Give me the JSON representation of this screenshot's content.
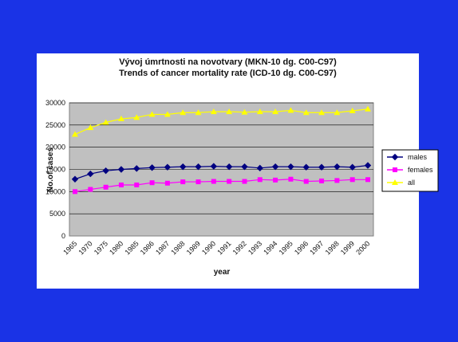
{
  "chart_data": {
    "type": "line",
    "title": "Vývoj úmrtnosti na novotvary (MKN-10 dg. C00-C97)",
    "subtitle": "Trends of cancer mortality rate (ICD-10 dg. C00-C97)",
    "xlabel": "year",
    "ylabel": "No.of cases",
    "ylim": [
      0,
      30000
    ],
    "yticks": [
      0,
      5000,
      10000,
      15000,
      20000,
      25000,
      30000
    ],
    "categories": [
      "1965",
      "1970",
      "1975",
      "1980",
      "1985",
      "1986",
      "1987",
      "1988",
      "1989",
      "1990",
      "1991",
      "1992",
      "1993",
      "1994",
      "1995",
      "1996",
      "1997",
      "1998",
      "1999",
      "2000"
    ],
    "x_tick_labels": [
      "1965",
      "1970",
      "1975",
      "1980",
      "1985",
      "1986",
      "1987",
      "1988",
      "1989",
      "1990",
      "1991",
      "1992",
      "1993",
      "1994",
      "1995",
      "1996",
      "1997",
      "1998",
      "1999",
      "2000"
    ],
    "grid": true,
    "legend": "right",
    "series": [
      {
        "name": "males",
        "color": "#000080",
        "marker": "diamond",
        "values": [
          12800,
          14000,
          14700,
          15000,
          15200,
          15400,
          15500,
          15600,
          15600,
          15700,
          15600,
          15600,
          15300,
          15600,
          15600,
          15500,
          15500,
          15600,
          15500,
          15900
        ]
      },
      {
        "name": "females",
        "color": "#ff00ff",
        "marker": "square",
        "values": [
          10000,
          10500,
          11000,
          11500,
          11500,
          12000,
          11900,
          12200,
          12200,
          12300,
          12300,
          12300,
          12700,
          12600,
          12800,
          12300,
          12400,
          12500,
          12700,
          12700
        ]
      },
      {
        "name": "all",
        "color": "#ffff00",
        "marker": "triangle",
        "values": [
          22900,
          24400,
          25600,
          26400,
          26700,
          27400,
          27400,
          27800,
          27800,
          28000,
          28000,
          27900,
          28000,
          28000,
          28300,
          27800,
          27800,
          27800,
          28200,
          28600
        ]
      }
    ]
  }
}
